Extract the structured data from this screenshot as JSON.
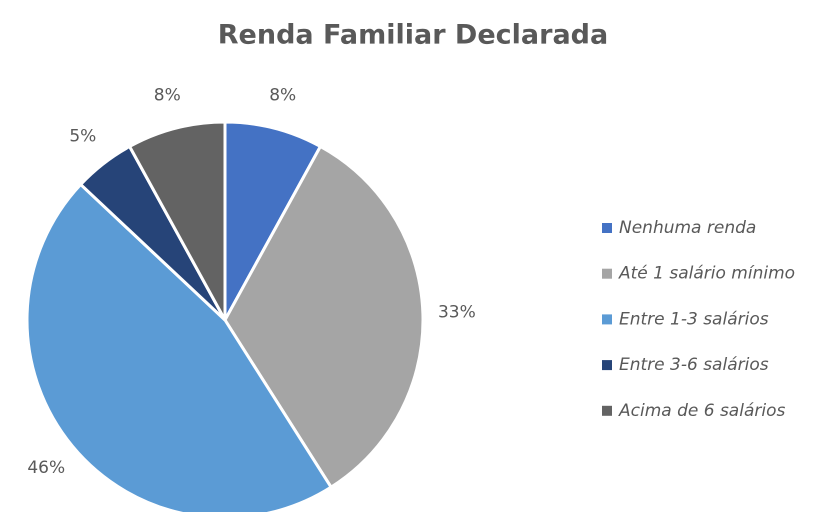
{
  "chart_data": {
    "type": "pie",
    "title": "Renda Familiar  Declarada",
    "categories": [
      "Nenhuma renda",
      "Até 1 salário mínimo",
      "Entre 1-3 salários",
      "Entre 3-6 salários",
      "Acima de 6 salários"
    ],
    "values": [
      8,
      33,
      46,
      5,
      8
    ],
    "value_labels": [
      "8%",
      "33%",
      "46%",
      "5%",
      "8%"
    ],
    "colors": [
      "#4472c4",
      "#a5a5a5",
      "#5b9bd5",
      "#264478",
      "#636363"
    ],
    "legend": "right"
  }
}
